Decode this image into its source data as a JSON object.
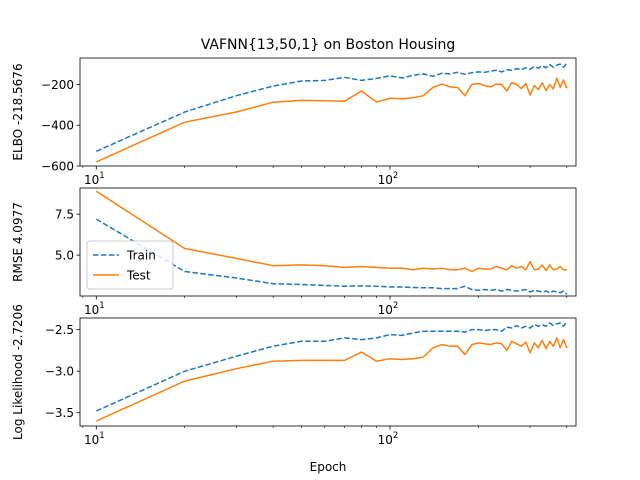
{
  "chart_data": [
    {
      "type": "line",
      "title": "VAFNN{13,50,1} on Boston Housing",
      "ylabel": "ELBO -218.5676",
      "xlabel": "",
      "xscale": "log",
      "xlim": [
        8.8,
        430
      ],
      "ylim": [
        -600,
        -70
      ],
      "yticks": [
        -600,
        -400,
        -200
      ],
      "ytick_labels": [
        "−600",
        "−400",
        "−200"
      ],
      "xticks": [
        10,
        100
      ],
      "xtick_labels": [
        "10",
        "100"
      ],
      "series": [
        {
          "name": "Train",
          "color": "#1f77b4",
          "dash": true,
          "x": [
            10,
            20,
            30,
            40,
            50,
            60,
            70,
            80,
            90,
            100,
            110,
            120,
            130,
            140,
            150,
            160,
            170,
            180,
            190,
            200,
            210,
            220,
            230,
            240,
            250,
            260,
            270,
            280,
            290,
            300,
            310,
            320,
            330,
            340,
            350,
            360,
            370,
            380,
            390,
            400
          ],
          "y": [
            -528,
            -335,
            -255,
            -208,
            -183,
            -180,
            -165,
            -180,
            -170,
            -158,
            -168,
            -155,
            -148,
            -160,
            -145,
            -148,
            -140,
            -150,
            -142,
            -138,
            -140,
            -135,
            -130,
            -138,
            -128,
            -130,
            -122,
            -128,
            -118,
            -125,
            -112,
            -120,
            -108,
            -118,
            -102,
            -115,
            -105,
            -100,
            -115,
            -95
          ]
        },
        {
          "name": "Test",
          "color": "#ff7f0e",
          "dash": false,
          "x": [
            10,
            20,
            30,
            40,
            50,
            60,
            70,
            80,
            90,
            100,
            110,
            120,
            130,
            140,
            150,
            160,
            170,
            180,
            190,
            200,
            210,
            220,
            230,
            240,
            250,
            260,
            270,
            280,
            290,
            300,
            310,
            320,
            330,
            340,
            350,
            360,
            370,
            380,
            390,
            400
          ],
          "y": [
            -580,
            -385,
            -335,
            -287,
            -278,
            -280,
            -282,
            -232,
            -287,
            -268,
            -270,
            -265,
            -255,
            -215,
            -198,
            -212,
            -215,
            -255,
            -200,
            -195,
            -205,
            -212,
            -198,
            -200,
            -232,
            -190,
            -200,
            -220,
            -195,
            -252,
            -205,
            -225,
            -192,
            -230,
            -200,
            -222,
            -168,
            -215,
            -178,
            -218
          ]
        }
      ]
    },
    {
      "type": "line",
      "title": "",
      "ylabel": "RMSE 4.0977",
      "xlabel": "",
      "xscale": "log",
      "xlim": [
        8.8,
        430
      ],
      "ylim": [
        2.5,
        9.1
      ],
      "yticks": [
        5.0,
        7.5
      ],
      "ytick_labels": [
        "5.0",
        "7.5"
      ],
      "xticks": [
        10,
        100
      ],
      "xtick_labels": [
        "10",
        "100"
      ],
      "legend": {
        "position": "center-left",
        "entries": [
          "Train",
          "Test"
        ]
      },
      "series": [
        {
          "name": "Train",
          "color": "#1f77b4",
          "dash": true,
          "x": [
            10,
            20,
            30,
            40,
            50,
            60,
            70,
            80,
            90,
            100,
            110,
            120,
            130,
            140,
            150,
            160,
            170,
            180,
            190,
            200,
            210,
            220,
            230,
            240,
            250,
            260,
            270,
            280,
            290,
            300,
            310,
            320,
            330,
            340,
            350,
            360,
            370,
            380,
            390,
            400
          ],
          "y": [
            7.2,
            4.0,
            3.6,
            3.25,
            3.2,
            3.15,
            3.1,
            3.12,
            3.1,
            3.05,
            3.05,
            3.02,
            3.0,
            3.0,
            2.95,
            2.95,
            2.95,
            3.1,
            2.9,
            2.85,
            2.9,
            2.85,
            2.9,
            2.8,
            2.9,
            2.85,
            2.8,
            2.85,
            2.9,
            2.75,
            2.85,
            2.8,
            2.75,
            2.8,
            2.7,
            2.8,
            2.75,
            2.7,
            2.8,
            2.6
          ]
        },
        {
          "name": "Test",
          "color": "#ff7f0e",
          "dash": false,
          "x": [
            10,
            20,
            30,
            40,
            50,
            60,
            70,
            80,
            90,
            100,
            110,
            120,
            130,
            140,
            150,
            160,
            170,
            180,
            190,
            200,
            210,
            220,
            230,
            240,
            250,
            260,
            270,
            280,
            290,
            300,
            310,
            320,
            330,
            340,
            350,
            360,
            370,
            380,
            390,
            400
          ],
          "y": [
            8.9,
            5.4,
            4.8,
            4.35,
            4.4,
            4.35,
            4.25,
            4.3,
            4.25,
            4.2,
            4.2,
            4.1,
            4.2,
            4.15,
            4.2,
            4.1,
            4.1,
            4.2,
            4.0,
            4.2,
            4.15,
            4.15,
            4.3,
            4.2,
            4.1,
            4.35,
            4.2,
            4.3,
            4.1,
            4.6,
            4.1,
            4.15,
            4.4,
            4.05,
            4.4,
            4.1,
            4.15,
            4.3,
            4.1,
            4.1
          ]
        }
      ]
    },
    {
      "type": "line",
      "title": "",
      "ylabel": "Log Likelihood -2.7206",
      "xlabel": "Epoch",
      "xscale": "log",
      "xlim": [
        8.8,
        430
      ],
      "ylim": [
        -3.66,
        -2.36
      ],
      "yticks": [
        -3.5,
        -3.0,
        -2.5
      ],
      "ytick_labels": [
        "−3.5",
        "−3.0",
        "−2.5"
      ],
      "xticks": [
        10,
        100
      ],
      "xtick_labels": [
        "10",
        "100"
      ],
      "series": [
        {
          "name": "Train",
          "color": "#1f77b4",
          "dash": true,
          "x": [
            10,
            20,
            30,
            40,
            50,
            60,
            70,
            80,
            90,
            100,
            110,
            120,
            130,
            140,
            150,
            160,
            170,
            180,
            190,
            200,
            210,
            220,
            230,
            240,
            250,
            260,
            270,
            280,
            290,
            300,
            310,
            320,
            330,
            340,
            350,
            360,
            370,
            380,
            390,
            400
          ],
          "y": [
            -3.48,
            -3.0,
            -2.82,
            -2.7,
            -2.64,
            -2.64,
            -2.6,
            -2.62,
            -2.6,
            -2.56,
            -2.57,
            -2.54,
            -2.52,
            -2.52,
            -2.52,
            -2.52,
            -2.52,
            -2.53,
            -2.5,
            -2.5,
            -2.51,
            -2.5,
            -2.5,
            -2.52,
            -2.47,
            -2.48,
            -2.45,
            -2.48,
            -2.46,
            -2.48,
            -2.44,
            -2.46,
            -2.44,
            -2.46,
            -2.42,
            -2.45,
            -2.43,
            -2.42,
            -2.46,
            -2.4
          ]
        },
        {
          "name": "Test",
          "color": "#ff7f0e",
          "dash": false,
          "x": [
            10,
            20,
            30,
            40,
            50,
            60,
            70,
            80,
            90,
            100,
            110,
            120,
            130,
            140,
            150,
            160,
            170,
            180,
            190,
            200,
            210,
            220,
            230,
            240,
            250,
            260,
            270,
            280,
            290,
            300,
            310,
            320,
            330,
            340,
            350,
            360,
            370,
            380,
            390,
            400
          ],
          "y": [
            -3.6,
            -3.12,
            -2.97,
            -2.88,
            -2.87,
            -2.87,
            -2.87,
            -2.77,
            -2.88,
            -2.85,
            -2.86,
            -2.85,
            -2.83,
            -2.72,
            -2.68,
            -2.7,
            -2.7,
            -2.8,
            -2.68,
            -2.66,
            -2.67,
            -2.68,
            -2.66,
            -2.67,
            -2.75,
            -2.64,
            -2.67,
            -2.7,
            -2.65,
            -2.78,
            -2.66,
            -2.72,
            -2.63,
            -2.73,
            -2.64,
            -2.7,
            -2.6,
            -2.72,
            -2.62,
            -2.72
          ]
        }
      ]
    }
  ]
}
